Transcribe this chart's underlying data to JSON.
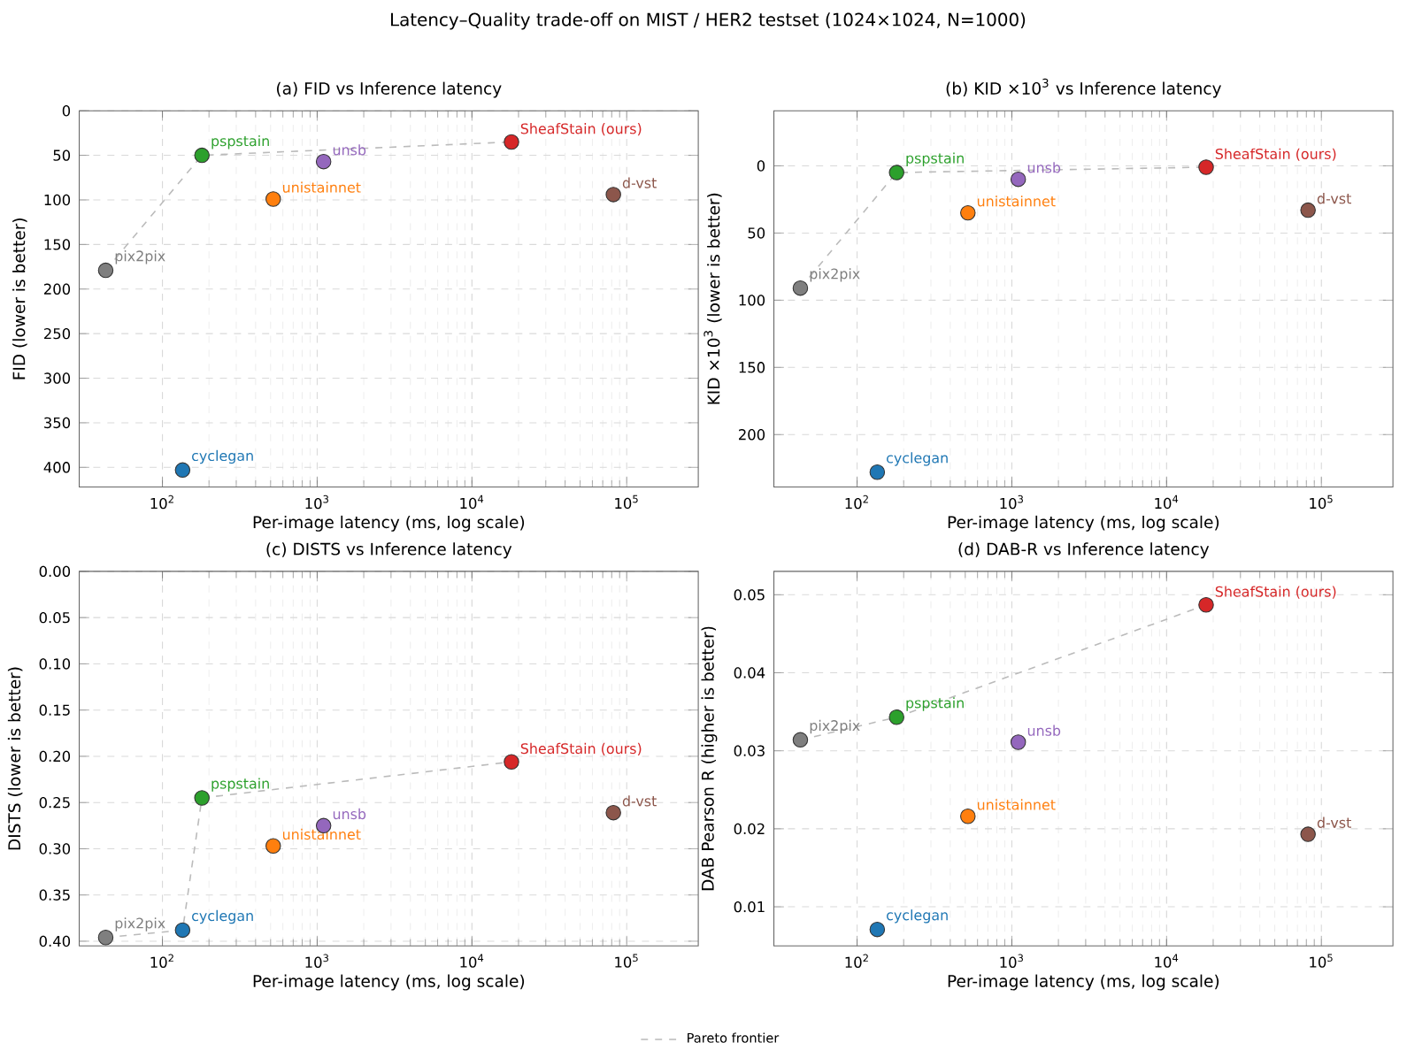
{
  "chart_data": [
    {
      "type": "scatter",
      "title": "Latency–Quality trade-off on MIST / HER2 testset (1024×1024, N=1000)",
      "subtitle": "(a) FID  vs  Inference latency",
      "xlabel": "Per-image latency (ms, log scale)",
      "ylabel": "FID  (lower is better)",
      "log": "x",
      "grid": true,
      "marker": "circle",
      "xlim": [
        29,
        290000
      ],
      "xticks": [
        {
          "value": 100,
          "label": "10$^{2}$"
        },
        {
          "value": 1000,
          "label": "10$^{3}$"
        },
        {
          "value": 10000,
          "label": "10$^{4}$"
        },
        {
          "value": 100000,
          "label": "10$^{5}$"
        }
      ],
      "ylim": [
        422,
        0
      ],
      "yticks": [
        0,
        50,
        100,
        150,
        200,
        250,
        300,
        350,
        400
      ],
      "series": [
        {
          "type": "line",
          "line_style": "dashed",
          "marker": "none",
          "color": "#bbbbbb",
          "x": [
            43,
            180,
            18000
          ],
          "values": [
            179,
            50,
            35
          ]
        },
        {
          "name": "cyclegan",
          "color": "#1f77b4",
          "x": [
            135
          ],
          "values": [
            403
          ]
        },
        {
          "name": "unistainnet",
          "color": "#ff7f0e",
          "x": [
            520
          ],
          "values": [
            99
          ]
        },
        {
          "name": "pspstain",
          "color": "#2ca02c",
          "x": [
            180
          ],
          "values": [
            50
          ]
        },
        {
          "name": "SheafStain (ours)",
          "color": "#d62728",
          "x": [
            18000
          ],
          "values": [
            35
          ]
        },
        {
          "name": "unsb",
          "color": "#9467bd",
          "x": [
            1100
          ],
          "values": [
            57
          ]
        },
        {
          "name": "d-vst",
          "color": "#8c564b",
          "x": [
            82000
          ],
          "values": [
            94
          ]
        },
        {
          "name": "pix2pix",
          "color": "#7f7f7f",
          "x": [
            43
          ],
          "values": [
            179
          ]
        }
      ]
    },
    {
      "type": "scatter",
      "title": "(b) KID ×10$^{3}$  vs  Inference latency",
      "xlabel": "Per-image latency (ms, log scale)",
      "ylabel": "KID ×10$^{3}$  (lower is better)",
      "log": "x",
      "grid": true,
      "marker": "circle",
      "xlim": [
        29,
        290000
      ],
      "xticks": [
        {
          "value": 100,
          "label": "10$^{2}$"
        },
        {
          "value": 1000,
          "label": "10$^{3}$"
        },
        {
          "value": 10000,
          "label": "10$^{4}$"
        },
        {
          "value": 100000,
          "label": "10$^{5}$"
        }
      ],
      "ylim": [
        239,
        -41
      ],
      "yticks": [
        0,
        50,
        100,
        150,
        200
      ],
      "series": [
        {
          "type": "line",
          "line_style": "dashed",
          "marker": "none",
          "color": "#bbbbbb",
          "x": [
            43,
            180,
            18000
          ],
          "values": [
            91,
            5,
            1
          ]
        },
        {
          "name": "cyclegan",
          "color": "#1f77b4",
          "x": [
            135
          ],
          "values": [
            228
          ]
        },
        {
          "name": "unistainnet",
          "color": "#ff7f0e",
          "x": [
            520
          ],
          "values": [
            35
          ]
        },
        {
          "name": "pspstain",
          "color": "#2ca02c",
          "x": [
            180
          ],
          "values": [
            5
          ]
        },
        {
          "name": "SheafStain (ours)",
          "color": "#d62728",
          "x": [
            18000
          ],
          "values": [
            1
          ]
        },
        {
          "name": "unsb",
          "color": "#9467bd",
          "x": [
            1100
          ],
          "values": [
            10
          ]
        },
        {
          "name": "d-vst",
          "color": "#8c564b",
          "x": [
            82000
          ],
          "values": [
            33
          ]
        },
        {
          "name": "pix2pix",
          "color": "#7f7f7f",
          "x": [
            43
          ],
          "values": [
            91
          ]
        }
      ]
    },
    {
      "type": "scatter",
      "title": "(c) DISTS  vs  Inference latency",
      "xlabel": "Per-image latency (ms, log scale)",
      "ylabel": "DISTS  (lower is better)",
      "log": "x",
      "grid": true,
      "marker": "circle",
      "xlim": [
        29,
        290000
      ],
      "xticks": [
        {
          "value": 100,
          "label": "10$^{2}$"
        },
        {
          "value": 1000,
          "label": "10$^{3}$"
        },
        {
          "value": 10000,
          "label": "10$^{4}$"
        },
        {
          "value": 100000,
          "label": "10$^{5}$"
        }
      ],
      "ylim": [
        0.405,
        0
      ],
      "yticks": [
        {
          "value": 0,
          "label": "0.00"
        },
        0.05,
        {
          "value": 0.1,
          "label": "0.10"
        },
        0.15,
        {
          "value": 0.2,
          "label": "0.20"
        },
        0.25,
        {
          "value": 0.3,
          "label": "0.30"
        },
        0.35,
        {
          "value": 0.4,
          "label": "0.40"
        }
      ],
      "series": [
        {
          "type": "line",
          "line_style": "dashed",
          "marker": "none",
          "color": "#bbbbbb",
          "x": [
            43,
            135,
            180,
            18000
          ],
          "values": [
            0.396,
            0.388,
            0.245,
            0.206
          ]
        },
        {
          "name": "cyclegan",
          "color": "#1f77b4",
          "x": [
            135
          ],
          "values": [
            0.388
          ]
        },
        {
          "name": "unistainnet",
          "color": "#ff7f0e",
          "x": [
            520
          ],
          "values": [
            0.297
          ]
        },
        {
          "name": "pspstain",
          "color": "#2ca02c",
          "x": [
            180
          ],
          "values": [
            0.245
          ]
        },
        {
          "name": "SheafStain (ours)",
          "color": "#d62728",
          "x": [
            18000
          ],
          "values": [
            0.206
          ]
        },
        {
          "name": "unsb",
          "color": "#9467bd",
          "x": [
            1100
          ],
          "values": [
            0.275
          ]
        },
        {
          "name": "d-vst",
          "color": "#8c564b",
          "x": [
            82000
          ],
          "values": [
            0.261
          ]
        },
        {
          "name": "pix2pix",
          "color": "#7f7f7f",
          "x": [
            43
          ],
          "values": [
            0.396
          ]
        }
      ]
    },
    {
      "type": "scatter",
      "title": "(d) DAB-R  vs  Inference latency",
      "xlabel": "Per-image latency (ms, log scale)",
      "ylabel": "DAB Pearson R  (higher is better)",
      "log": "x",
      "grid": true,
      "marker": "circle",
      "legend": "bottom",
      "xlim": [
        29,
        290000
      ],
      "xticks": [
        {
          "value": 100,
          "label": "10$^{2}$"
        },
        {
          "value": 1000,
          "label": "10$^{3}$"
        },
        {
          "value": 10000,
          "label": "10$^{4}$"
        },
        {
          "value": 100000,
          "label": "10$^{5}$"
        }
      ],
      "ylim": [
        0.005,
        0.053
      ],
      "yticks": [
        0.01,
        0.02,
        0.03,
        0.04,
        0.05
      ],
      "series": [
        {
          "type": "line",
          "name": "Pareto frontier",
          "line_style": "dashed",
          "marker": "none",
          "color": "#bbbbbb",
          "x": [
            43,
            180,
            18000
          ],
          "values": [
            0.0314,
            0.0343,
            0.0487
          ]
        },
        {
          "name": "cyclegan",
          "color": "#1f77b4",
          "x": [
            135
          ],
          "values": [
            0.0071
          ]
        },
        {
          "name": "unistainnet",
          "color": "#ff7f0e",
          "x": [
            520
          ],
          "values": [
            0.0216
          ]
        },
        {
          "name": "pspstain",
          "color": "#2ca02c",
          "x": [
            180
          ],
          "values": [
            0.0343
          ]
        },
        {
          "name": "SheafStain (ours)",
          "color": "#d62728",
          "x": [
            18000
          ],
          "values": [
            0.0487
          ]
        },
        {
          "name": "unsb",
          "color": "#9467bd",
          "x": [
            1100
          ],
          "values": [
            0.0311
          ]
        },
        {
          "name": "d-vst",
          "color": "#8c564b",
          "x": [
            82000
          ],
          "values": [
            0.0193
          ]
        },
        {
          "name": "pix2pix",
          "color": "#7f7f7f",
          "x": [
            43
          ],
          "values": [
            0.0314
          ]
        }
      ]
    }
  ]
}
